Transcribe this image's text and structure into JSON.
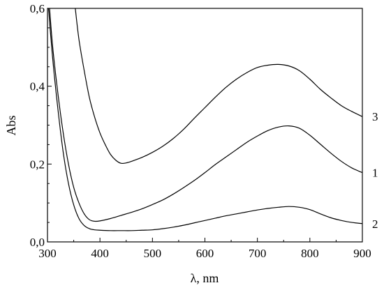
{
  "chart_data": {
    "type": "line",
    "xlabel": "λ, nm",
    "ylabel": "Abs",
    "xlim": [
      300,
      900
    ],
    "ylim": [
      0,
      0.6
    ],
    "x_ticks": [
      300,
      400,
      500,
      600,
      700,
      800,
      900
    ],
    "y_ticks": [
      0.0,
      0.2,
      0.4,
      0.6
    ],
    "x_tick_labels": [
      "300",
      "400",
      "500",
      "600",
      "700",
      "800",
      "900"
    ],
    "y_tick_labels": [
      "0,0",
      "0,2",
      "0,4",
      "0,6"
    ],
    "grid": false,
    "line_color": "#000000",
    "series": [
      {
        "name": "3",
        "x": [
          353,
          360,
          370,
          380,
          390,
          400,
          410,
          420,
          430,
          440,
          450,
          460,
          480,
          500,
          520,
          540,
          560,
          580,
          600,
          620,
          640,
          660,
          680,
          700,
          720,
          740,
          760,
          780,
          800,
          820,
          840,
          860,
          880,
          900
        ],
        "y": [
          0.6,
          0.52,
          0.44,
          0.37,
          0.32,
          0.28,
          0.25,
          0.225,
          0.21,
          0.202,
          0.203,
          0.207,
          0.217,
          0.23,
          0.246,
          0.266,
          0.29,
          0.318,
          0.345,
          0.372,
          0.397,
          0.418,
          0.435,
          0.448,
          0.454,
          0.456,
          0.452,
          0.44,
          0.418,
          0.392,
          0.37,
          0.35,
          0.335,
          0.322
        ]
      },
      {
        "name": "1",
        "x": [
          304,
          310,
          320,
          330,
          340,
          350,
          360,
          370,
          380,
          390,
          400,
          420,
          440,
          460,
          480,
          500,
          520,
          540,
          560,
          580,
          600,
          620,
          640,
          660,
          680,
          700,
          720,
          740,
          760,
          780,
          800,
          820,
          840,
          860,
          880,
          900
        ],
        "y": [
          0.6,
          0.5,
          0.38,
          0.28,
          0.2,
          0.14,
          0.1,
          0.072,
          0.057,
          0.053,
          0.054,
          0.06,
          0.068,
          0.076,
          0.085,
          0.096,
          0.108,
          0.123,
          0.14,
          0.158,
          0.178,
          0.199,
          0.218,
          0.237,
          0.256,
          0.272,
          0.286,
          0.295,
          0.298,
          0.292,
          0.274,
          0.251,
          0.228,
          0.207,
          0.19,
          0.178
        ]
      },
      {
        "name": "2",
        "x": [
          302,
          310,
          320,
          330,
          340,
          350,
          360,
          370,
          380,
          390,
          400,
          420,
          440,
          460,
          480,
          500,
          520,
          540,
          560,
          580,
          600,
          620,
          640,
          660,
          680,
          700,
          720,
          740,
          760,
          780,
          800,
          820,
          840,
          860,
          880,
          900
        ],
        "y": [
          0.6,
          0.47,
          0.34,
          0.23,
          0.15,
          0.095,
          0.06,
          0.042,
          0.034,
          0.031,
          0.03,
          0.029,
          0.029,
          0.029,
          0.03,
          0.031,
          0.034,
          0.038,
          0.043,
          0.049,
          0.055,
          0.061,
          0.067,
          0.072,
          0.077,
          0.082,
          0.086,
          0.089,
          0.091,
          0.089,
          0.083,
          0.072,
          0.062,
          0.055,
          0.05,
          0.047
        ]
      }
    ]
  }
}
